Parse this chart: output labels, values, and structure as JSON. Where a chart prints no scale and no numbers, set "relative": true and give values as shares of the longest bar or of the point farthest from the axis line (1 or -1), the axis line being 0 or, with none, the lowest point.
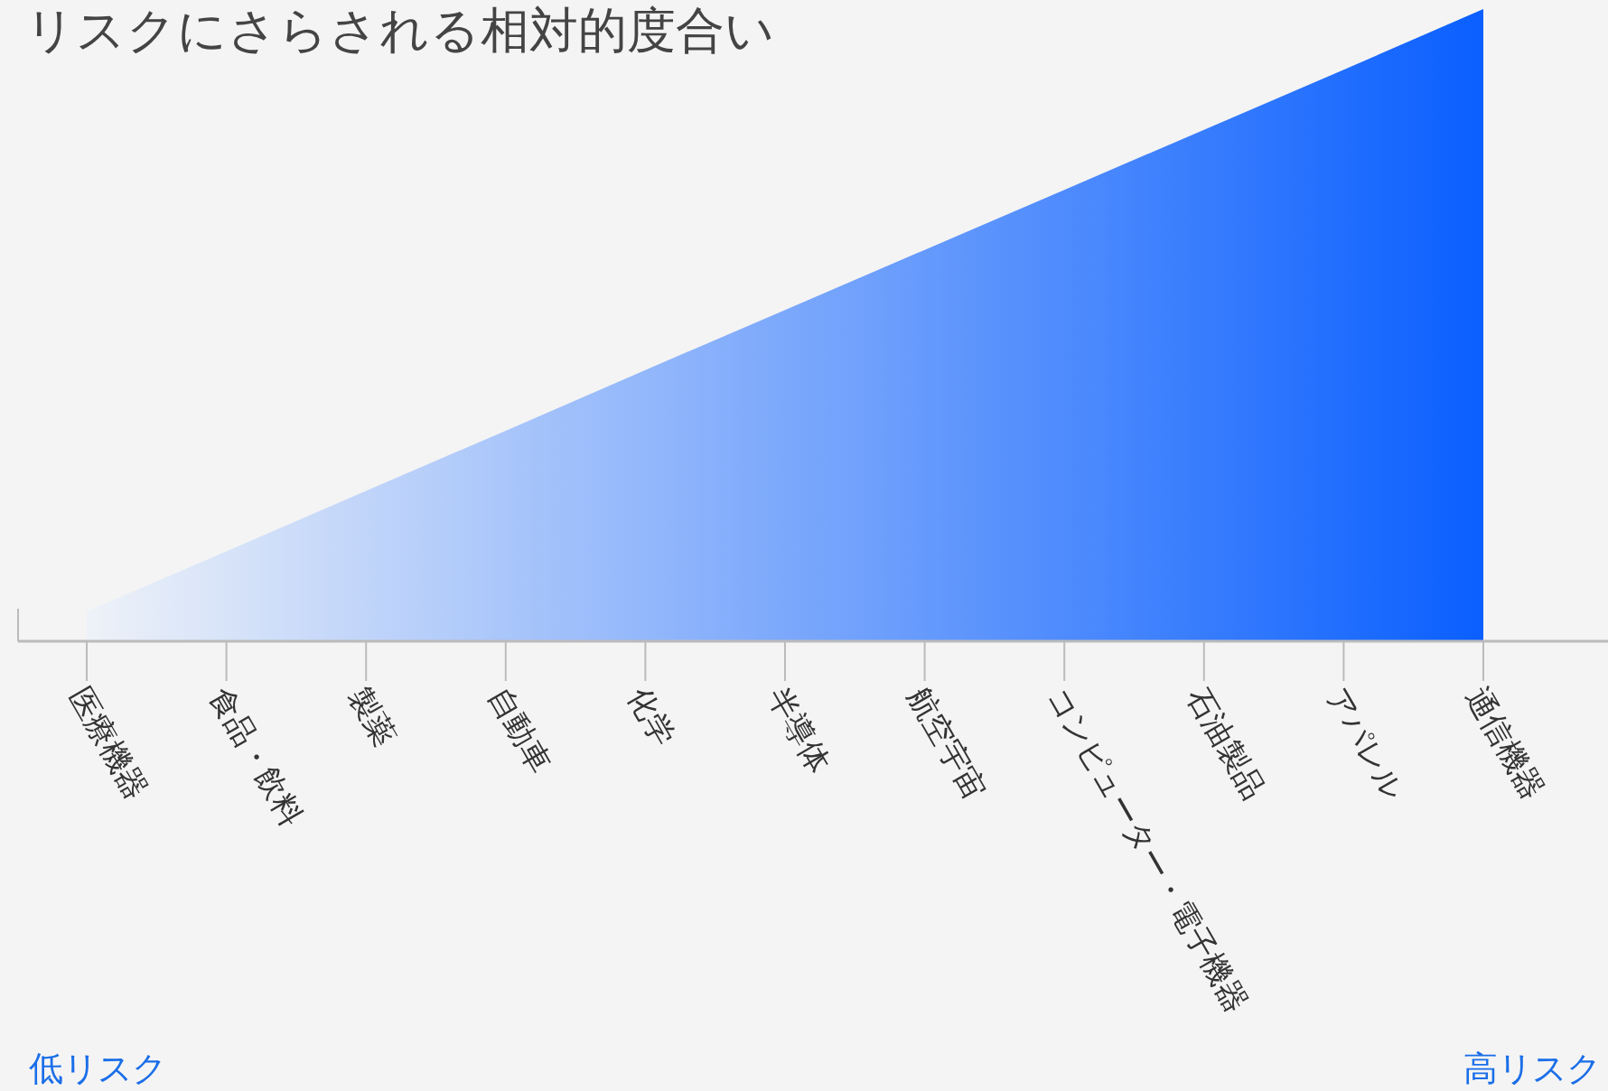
{
  "chart_data": {
    "type": "area",
    "title": "リスクにさらされる相対的度合い",
    "relative": true,
    "color": "#0a5fff",
    "categories": [
      "医療機器",
      "食品・飲料",
      "製薬",
      "自動車",
      "化学",
      "半導体",
      "航空宇宙",
      "コンピューター・電子機器",
      "石油製品",
      "アパレル",
      "通信機器"
    ],
    "values": [
      0.047,
      0.142,
      0.238,
      0.333,
      0.429,
      0.524,
      0.619,
      0.714,
      0.809,
      0.904,
      1
    ],
    "annotations": [
      "低リスク",
      "高リスク"
    ]
  }
}
